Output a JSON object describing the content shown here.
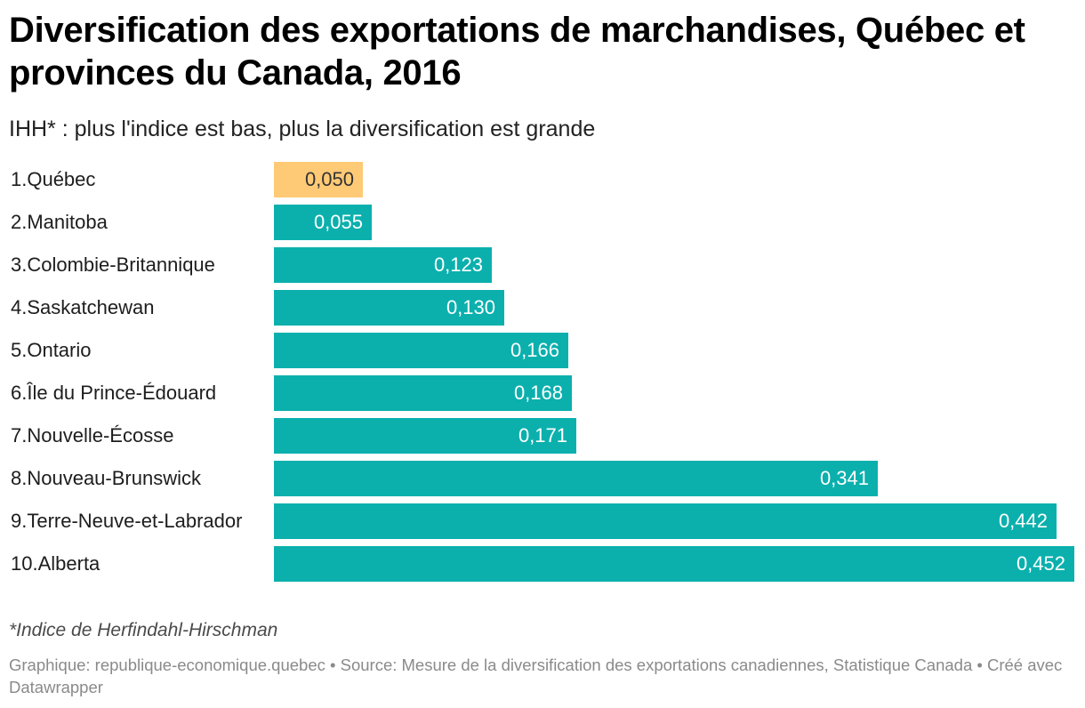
{
  "header": {
    "title": "Diversification des exportations de marchandises, Québec et provinces du Canada, 2016",
    "subtitle": "IHH* : plus l'indice est bas, plus la diversification est grande"
  },
  "footer": {
    "note": "*Indice de Herfindahl-Hirschman",
    "credits": "Graphique: republique-economique.quebec • Source: Mesure de la diversification des exportations canadiennes, Statistique Canada • Créé avec Datawrapper"
  },
  "colors": {
    "highlight": "#ffca76",
    "default": "#0bb0ad",
    "highlight_text": "#333333",
    "default_text": "#ffffff"
  },
  "chart_data": {
    "type": "bar",
    "orientation": "horizontal",
    "title": "Diversification des exportations de marchandises, Québec et provinces du Canada, 2016",
    "subtitle": "IHH* : plus l'indice est bas, plus la diversification est grande",
    "xlabel": "",
    "ylabel": "",
    "xlim": [
      0,
      0.452
    ],
    "grid": false,
    "legend": "none",
    "categories": [
      "1.Québec",
      "2.Manitoba",
      "3.Colombie-Britannique",
      "4.Saskatchewan",
      "5.Ontario",
      "6.Île du Prince-Édouard",
      "7.Nouvelle-Écosse",
      "8.Nouveau-Brunswick",
      "9.Terre-Neuve-et-Labrador",
      "10.Alberta"
    ],
    "values": [
      0.05,
      0.055,
      0.123,
      0.13,
      0.166,
      0.168,
      0.171,
      0.341,
      0.442,
      0.452
    ],
    "value_labels": [
      "0,050",
      "0,055",
      "0,123",
      "0,130",
      "0,166",
      "0,168",
      "0,171",
      "0,341",
      "0,442",
      "0,452"
    ],
    "highlighted": [
      "1.Québec"
    ]
  }
}
